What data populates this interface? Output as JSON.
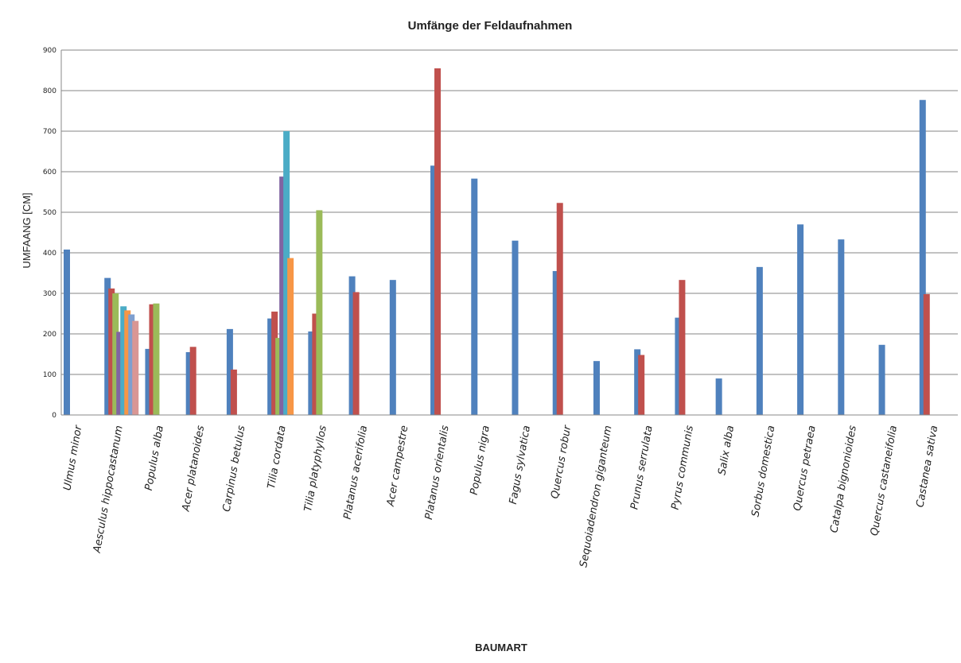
{
  "chart_data": {
    "type": "bar",
    "title": "Umfänge der Feldaufnahmen",
    "xlabel": "BAUMART",
    "ylabel": "UMFAANG [CM]",
    "ylim": [
      0,
      900
    ],
    "yticks": [
      0,
      100,
      200,
      300,
      400,
      500,
      600,
      700,
      800,
      900
    ],
    "grid": true,
    "legend": "none",
    "colors": [
      "#4f81bd",
      "#c0504d",
      "#9bbb59",
      "#8064a2",
      "#4bacc6",
      "#f79646",
      "#7f9fcf",
      "#d99694"
    ],
    "categories": [
      "Ulmus minor",
      "Aesculus hippocastanum",
      "Populus alba",
      "Acer platanoides",
      "Carpinus betulus",
      "Tilia cordata",
      "Tilia platyphyllos",
      "Platanus acerifolia",
      "Acer campestre",
      "Platanus orientalis",
      "Populus nigra",
      "Fagus sylvatica",
      "Quercus robur",
      "Sequoiadendron giganteum",
      "Prunus serrulata",
      "Pyrus communis",
      "Salix alba",
      "Sorbus domestica",
      "Quercus petraea",
      "Catalpa bignonioides",
      "Quercus castaneifolia",
      "Castanea sativa"
    ],
    "series": [
      {
        "values": [
          408,
          338,
          163,
          155,
          212,
          238,
          206,
          342,
          333,
          615,
          583,
          430,
          355,
          133,
          162,
          240,
          90,
          365,
          470,
          433,
          173,
          777
        ]
      },
      {
        "values": [
          null,
          312,
          273,
          168,
          112,
          255,
          250,
          303,
          null,
          855,
          null,
          null,
          523,
          null,
          148,
          333,
          null,
          null,
          null,
          null,
          null,
          298
        ]
      },
      {
        "values": [
          null,
          300,
          275,
          null,
          null,
          190,
          505,
          null,
          null,
          null,
          null,
          null,
          null,
          null,
          null,
          null,
          null,
          null,
          null,
          null,
          null,
          null
        ]
      },
      {
        "values": [
          null,
          205,
          null,
          null,
          null,
          588,
          null,
          null,
          null,
          null,
          null,
          null,
          null,
          null,
          null,
          null,
          null,
          null,
          null,
          null,
          null,
          null
        ]
      },
      {
        "values": [
          null,
          268,
          null,
          null,
          null,
          700,
          null,
          null,
          null,
          null,
          null,
          null,
          null,
          null,
          null,
          null,
          null,
          null,
          null,
          null,
          null,
          null
        ]
      },
      {
        "values": [
          null,
          258,
          null,
          null,
          null,
          387,
          null,
          null,
          null,
          null,
          null,
          null,
          null,
          null,
          null,
          null,
          null,
          null,
          null,
          null,
          null,
          null
        ]
      },
      {
        "values": [
          null,
          248,
          null,
          null,
          null,
          null,
          null,
          null,
          null,
          null,
          null,
          null,
          null,
          null,
          null,
          null,
          null,
          null,
          null,
          null,
          null,
          null
        ]
      },
      {
        "values": [
          null,
          232,
          null,
          null,
          null,
          null,
          null,
          null,
          null,
          null,
          null,
          null,
          null,
          null,
          null,
          null,
          null,
          null,
          null,
          null,
          null,
          null
        ]
      }
    ]
  }
}
